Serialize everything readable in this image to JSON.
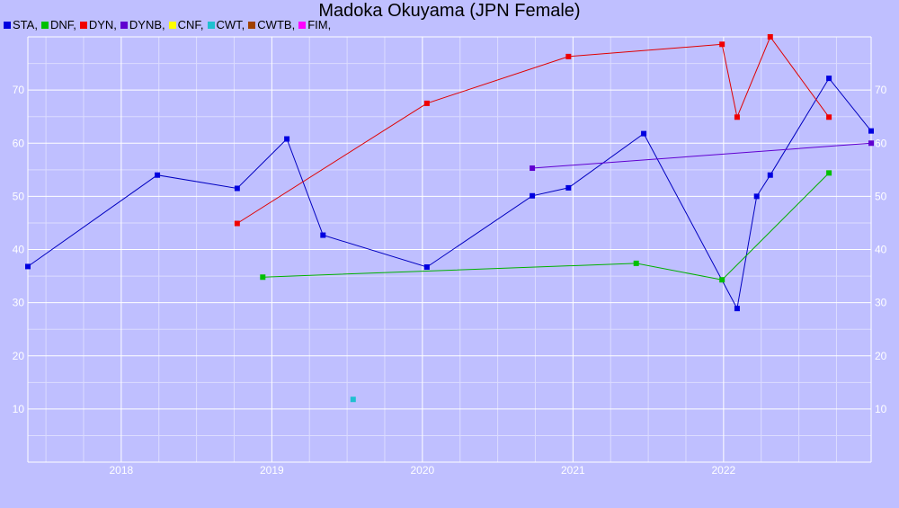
{
  "chart_data": {
    "type": "line",
    "title": "Madoka Okuyama (JPN Female)",
    "xlabel": "",
    "ylabel": "",
    "xlim": [
      2017.38,
      2022.98
    ],
    "ylim": [
      0,
      80
    ],
    "x_ticks": [
      2018,
      2019,
      2020,
      2021,
      2022
    ],
    "y_ticks": [
      10,
      20,
      30,
      40,
      50,
      60,
      70
    ],
    "grid": true,
    "legend": "top-left",
    "legend_entries": [
      {
        "label": "STA,",
        "color": "#0000e0"
      },
      {
        "label": "DNF,",
        "color": "#00c000"
      },
      {
        "label": "DYN,",
        "color": "#f00000"
      },
      {
        "label": "DYNB,",
        "color": "#6000d0"
      },
      {
        "label": "CNF,",
        "color": "#ffff00"
      },
      {
        "label": "CWT,",
        "color": "#20c0d0"
      },
      {
        "label": "CWTB,",
        "color": "#a04000"
      },
      {
        "label": "FIM,",
        "color": "#ff00ff"
      }
    ],
    "series": [
      {
        "key": "STA",
        "color": "#0000c0",
        "marker": "#0000e0",
        "points": [
          [
            2017.38,
            36.8
          ],
          [
            2018.24,
            54.0
          ],
          [
            2018.77,
            51.5
          ],
          [
            2019.1,
            60.8
          ],
          [
            2019.34,
            42.7
          ],
          [
            2020.03,
            36.7
          ],
          [
            2020.73,
            50.1
          ],
          [
            2020.97,
            51.6
          ],
          [
            2021.47,
            61.8
          ],
          [
            2022.09,
            28.9
          ],
          [
            2022.22,
            50.0
          ],
          [
            2022.31,
            54.0
          ],
          [
            2022.7,
            72.2
          ],
          [
            2022.98,
            62.3
          ]
        ]
      },
      {
        "key": "DNF",
        "color": "#00b000",
        "marker": "#00c000",
        "points": [
          [
            2018.94,
            34.8
          ],
          [
            2021.42,
            37.4
          ],
          [
            2021.99,
            34.3
          ],
          [
            2022.7,
            54.4
          ]
        ]
      },
      {
        "key": "DYN",
        "color": "#e00000",
        "marker": "#f00000",
        "points": [
          [
            2018.77,
            44.9
          ],
          [
            2020.03,
            67.5
          ],
          [
            2020.97,
            76.3
          ],
          [
            2021.99,
            78.6
          ],
          [
            2022.09,
            64.9
          ],
          [
            2022.31,
            80.0
          ],
          [
            2022.7,
            64.9
          ]
        ]
      },
      {
        "key": "DYNB",
        "color": "#6000d0",
        "marker": "#6000d0",
        "points": [
          [
            2020.73,
            55.3
          ],
          [
            2022.98,
            60.0
          ]
        ]
      },
      {
        "key": "CWT",
        "color": "#20c0d0",
        "marker": "#20c0d0",
        "points": [
          [
            2019.54,
            11.8
          ]
        ]
      }
    ]
  }
}
